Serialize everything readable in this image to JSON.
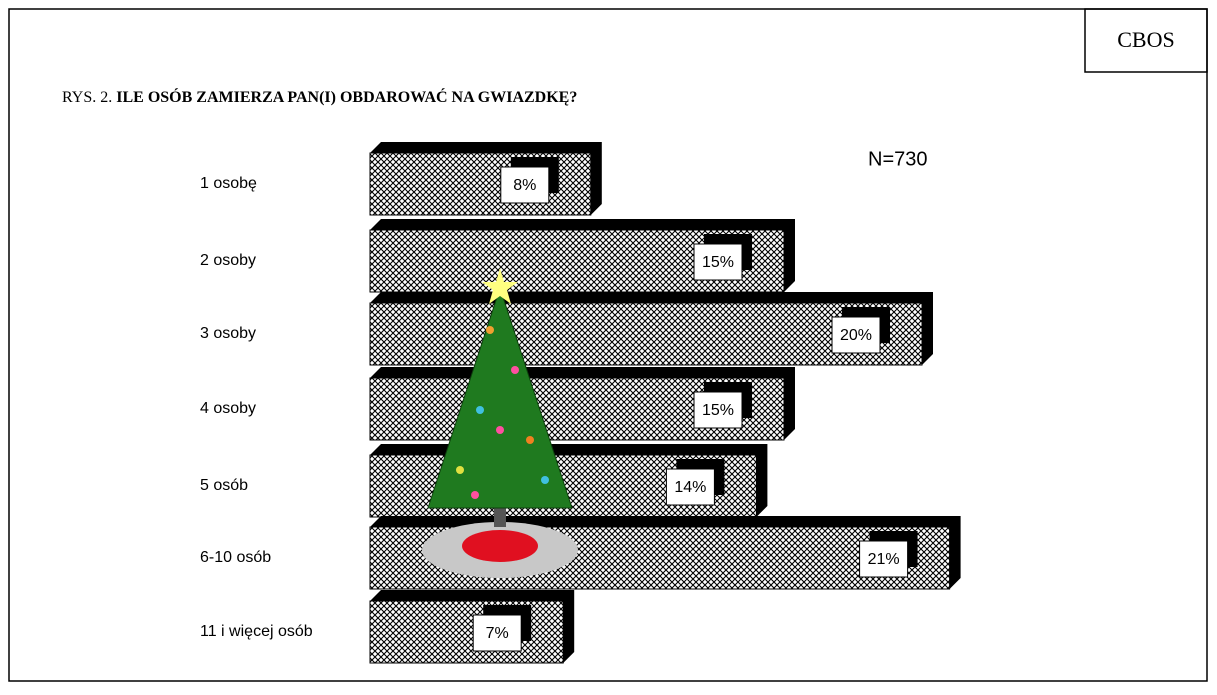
{
  "chart_data": {
    "type": "bar",
    "orientation": "horizontal",
    "figure_label": "RYS. 2.",
    "title": "ILE OSÓB ZAMIERZA PAN(I) OBDAROWAĆ NA GWIAZDKĘ?",
    "source": "CBOS",
    "annotation": "N=730",
    "categories": [
      "1 osobę",
      "2 osoby",
      "3 osoby",
      "4 osoby",
      "5 osób",
      "6-10 osób",
      "11 i więcej osób"
    ],
    "values": [
      8,
      15,
      20,
      15,
      14,
      21,
      7
    ],
    "value_labels": [
      "8%",
      "15%",
      "20%",
      "15%",
      "14%",
      "21%",
      "7%"
    ],
    "color": "#000000"
  }
}
